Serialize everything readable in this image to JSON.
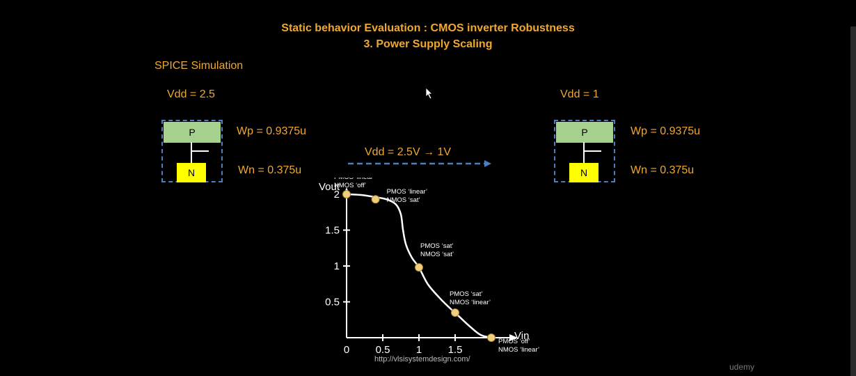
{
  "title": "Static behavior Evaluation : CMOS inverter Robustness",
  "subtitle": "3. Power Supply Scaling",
  "section_label": "SPICE Simulation",
  "left": {
    "vdd": "Vdd = 2.5",
    "p": "P",
    "n": "N",
    "wp": "Wp = 0.9375u",
    "wn": "Wn = 0.375u"
  },
  "right": {
    "vdd": "Vdd = 1",
    "p": "P",
    "n": "N",
    "wp": "Wp = 0.9375u",
    "wn": "Wn = 0.375u"
  },
  "transition": "Vdd = 2.5V → 1V",
  "url": "http://vlsisystemdesign.com/",
  "watermark": "udemy",
  "colors": {
    "accent": "#f0a830",
    "dash": "#4a7fc0",
    "pmos": "#a6d08e",
    "nmos": "#ffff00",
    "point": "#f0d080"
  },
  "chart_data": {
    "type": "line",
    "xlabel": "Vin",
    "ylabel": "Vout",
    "xlim": [
      0,
      2
    ],
    "ylim": [
      0,
      2
    ],
    "x_ticks": [
      "0",
      "0.5",
      "1",
      "1.5"
    ],
    "y_ticks": [
      "0.5",
      "1",
      "1.5",
      "2"
    ],
    "series": [
      {
        "x": [
          0,
          0.2,
          0.4,
          0.55,
          0.68,
          0.75,
          0.78,
          0.82,
          0.9,
          1.0,
          1.12,
          1.28,
          1.42,
          1.55,
          1.7,
          1.85,
          2.0
        ],
        "y": [
          2.0,
          1.99,
          1.96,
          1.93,
          1.86,
          1.72,
          1.5,
          1.3,
          1.12,
          0.98,
          0.75,
          0.56,
          0.42,
          0.3,
          0.16,
          0.04,
          0.0
        ]
      }
    ],
    "points": [
      {
        "x": 0.0,
        "y": 2.0,
        "label1": "PMOS ‘linear’",
        "label2": "NMOS ‘off’"
      },
      {
        "x": 0.4,
        "y": 1.93,
        "label1": "PMOS ‘linear’",
        "label2": "NMOS ‘sat’"
      },
      {
        "x": 1.0,
        "y": 0.98,
        "label1": "PMOS ‘sat’",
        "label2": "NMOS ‘sat’"
      },
      {
        "x": 1.5,
        "y": 0.35,
        "label1": "PMOS ‘sat’",
        "label2": "NMOS ‘linear’"
      },
      {
        "x": 2.0,
        "y": 0.0,
        "label1": "PMOS ‘off’",
        "label2": "NMOS ‘linear’"
      }
    ]
  }
}
